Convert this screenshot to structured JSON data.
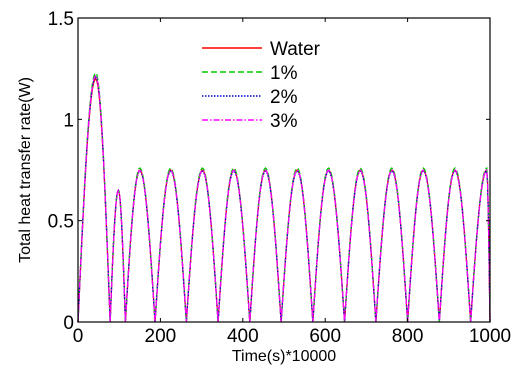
{
  "chart_data": {
    "type": "line",
    "xlabel": "Time(s)*10000",
    "ylabel": "Total heat transfer rate(W)",
    "xlim": [
      0,
      1000
    ],
    "ylim": [
      0,
      1.5
    ],
    "x_ticks": [
      0,
      200,
      400,
      600,
      800,
      1000
    ],
    "y_ticks": [
      0,
      0.5,
      1,
      1.5
    ],
    "x_tick_labels": [
      "0",
      "200",
      "400",
      "600",
      "800",
      "1000"
    ],
    "y_tick_labels": [
      "0",
      "0.5",
      "1",
      "1.5"
    ],
    "grid": false,
    "legend_position": "top-center",
    "series": [
      {
        "name": "Water",
        "color": "#ff0000",
        "style": "solid",
        "first_peak": 1.2,
        "peak": 0.75
      },
      {
        "name": "1%",
        "color": "#00cc00",
        "style": "dashed",
        "first_peak": 1.23,
        "peak": 0.76
      },
      {
        "name": "2%",
        "color": "#0000cc",
        "style": "dotted",
        "first_peak": 1.21,
        "peak": 0.745
      },
      {
        "name": "3%",
        "color": "#ff00ff",
        "style": "dashdot",
        "first_peak": 1.215,
        "peak": 0.75
      }
    ],
    "minima_x": [
      0,
      78,
      115,
      187,
      263,
      340,
      417,
      493,
      570,
      647,
      723,
      800,
      877,
      953,
      1000
    ],
    "peaks": [
      {
        "x": 43,
        "y": 1.21
      },
      {
        "x": 98,
        "y": 0.65
      },
      {
        "x": 150,
        "y": 0.76
      },
      {
        "x": 225,
        "y": 0.75
      },
      {
        "x": 302,
        "y": 0.75
      },
      {
        "x": 378,
        "y": 0.75
      },
      {
        "x": 455,
        "y": 0.75
      },
      {
        "x": 532,
        "y": 0.75
      },
      {
        "x": 608,
        "y": 0.75
      },
      {
        "x": 685,
        "y": 0.75
      },
      {
        "x": 762,
        "y": 0.75
      },
      {
        "x": 838,
        "y": 0.75
      },
      {
        "x": 915,
        "y": 0.75
      },
      {
        "x": 992,
        "y": 0.75
      }
    ]
  }
}
